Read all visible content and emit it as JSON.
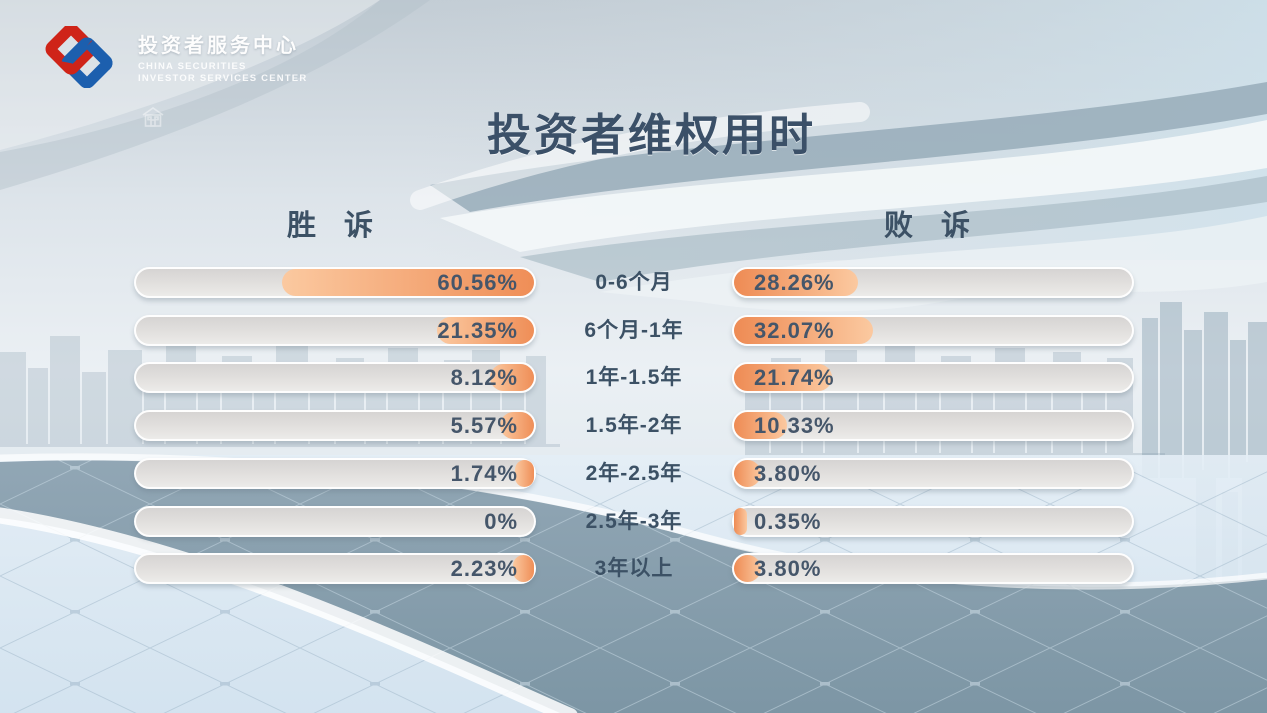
{
  "brand": {
    "name_cn": "投资者服务中心",
    "name_en_line1": "CHINA SECURITIES",
    "name_en_line2": "INVESTOR SERVICES CENTER"
  },
  "title": "投资者维权用时",
  "chart_data": {
    "type": "bar",
    "layout": "horizontal-tornado",
    "title": "投资者维权用时",
    "left_header": "胜 诉",
    "right_header": "败 诉",
    "categories": [
      "0-6个月",
      "6个月-1年",
      "1年-1.5年",
      "1.5年-2年",
      "2年-2.5年",
      "2.5年-3年",
      "3年以上"
    ],
    "series": [
      {
        "name": "胜诉",
        "side": "left",
        "values": [
          60.56,
          21.35,
          8.12,
          5.57,
          1.74,
          0,
          2.23
        ],
        "labels": [
          "60.56%",
          "21.35%",
          "8.12%",
          "5.57%",
          "1.74%",
          "0%",
          "2.23%"
        ]
      },
      {
        "name": "败诉",
        "side": "right",
        "values": [
          28.26,
          32.07,
          21.74,
          10.33,
          3.8,
          0.35,
          3.8
        ],
        "labels": [
          "28.26%",
          "32.07%",
          "21.74%",
          "10.33%",
          "3.80%",
          "0.35%",
          "3.80%"
        ]
      }
    ],
    "value_range": [
      0,
      100
    ],
    "unit": "%",
    "grid": false,
    "legend_position": "column-headers"
  },
  "colors": {
    "title_text": "#3b5068",
    "value_text": "#45566a",
    "bar_track": "#e0dedd",
    "bar_fill_dark": "#ee8b54",
    "bar_fill_light": "#fbc9a0",
    "logo_red": "#cf2418",
    "logo_blue": "#1c5fae",
    "floor_dark": "#7e96a6",
    "floor_light": "#dfeaf4"
  },
  "icons": {
    "logo": "csisc-interlocked-links",
    "home": "home-building-outline"
  }
}
